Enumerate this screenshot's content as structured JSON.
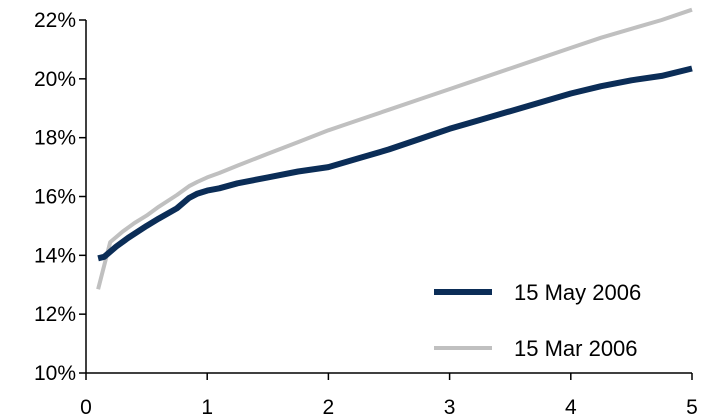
{
  "chart_data": {
    "type": "line",
    "title": "",
    "xlabel": "",
    "ylabel": "",
    "xlim": [
      0,
      5
    ],
    "ylim": [
      10,
      22
    ],
    "x_ticks": [
      0,
      1,
      2,
      3,
      4,
      5
    ],
    "x_tick_labels": [
      "0",
      "1",
      "2",
      "3",
      "4",
      "5"
    ],
    "y_ticks": [
      10,
      12,
      14,
      16,
      18,
      20,
      22
    ],
    "y_tick_labels": [
      "10%",
      "12%",
      "14%",
      "16%",
      "18%",
      "20%",
      "22%"
    ],
    "grid": false,
    "legend_position": "bottom-right",
    "series": [
      {
        "name": "15 May 2006",
        "color": "#0b2d57",
        "x": [
          0.1,
          0.15,
          0.25,
          0.35,
          0.5,
          0.6,
          0.75,
          0.85,
          0.92,
          1.0,
          1.1,
          1.25,
          1.5,
          1.75,
          2.0,
          2.25,
          2.5,
          2.75,
          3.0,
          3.25,
          3.5,
          3.75,
          4.0,
          4.25,
          4.5,
          4.75,
          5.0
        ],
        "y": [
          13.9,
          13.95,
          14.3,
          14.6,
          15.0,
          15.25,
          15.6,
          15.95,
          16.1,
          16.2,
          16.28,
          16.45,
          16.65,
          16.85,
          17.0,
          17.3,
          17.6,
          17.95,
          18.3,
          18.6,
          18.9,
          19.2,
          19.5,
          19.75,
          19.95,
          20.1,
          20.35
        ]
      },
      {
        "name": "15 Mar 2006",
        "color": "#c0c0c0",
        "x": [
          0.1,
          0.2,
          0.3,
          0.4,
          0.5,
          0.6,
          0.75,
          0.85,
          0.92,
          1.0,
          1.1,
          1.25,
          1.5,
          1.75,
          2.0,
          2.25,
          2.5,
          2.75,
          3.0,
          3.25,
          3.5,
          3.75,
          4.0,
          4.25,
          4.5,
          4.75,
          5.0
        ],
        "y": [
          12.85,
          14.45,
          14.8,
          15.1,
          15.35,
          15.65,
          16.05,
          16.35,
          16.5,
          16.65,
          16.8,
          17.05,
          17.45,
          17.85,
          18.25,
          18.6,
          18.95,
          19.3,
          19.65,
          20.0,
          20.35,
          20.7,
          21.05,
          21.4,
          21.7,
          22.0,
          22.35
        ]
      }
    ]
  }
}
